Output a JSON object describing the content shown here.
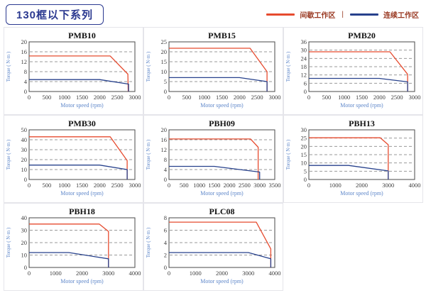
{
  "header": {
    "series_title": "130框以下系列",
    "legend": {
      "intermittent_label": "间歇工作区",
      "separator": "|",
      "continuous_label": "连续工作区"
    }
  },
  "colors": {
    "intermittent": "#e64b2f",
    "continuous": "#27418c",
    "grid": "#9a9a9a",
    "plot_border": "#4a4a4a",
    "tick": "#3c3c3c",
    "axis_label": "#5c85c9",
    "legend_text": "#9a3a23",
    "accent": "#2b3990",
    "cell_border": "#e5e5ea"
  },
  "chart_data": [
    {
      "type": "line",
      "title": "PMB10",
      "xlabel": "Motor speed (rpm)",
      "ylabel": "Torque ( N·m )",
      "xlim": [
        0,
        3000
      ],
      "ylim": [
        0,
        20
      ],
      "xticks": [
        0,
        500,
        1000,
        1500,
        2000,
        2500,
        3000
      ],
      "yticks": [
        0,
        4,
        8,
        12,
        16,
        20
      ],
      "series": [
        {
          "name": "间歇工作区",
          "role": "intermittent",
          "points": [
            [
              0,
              14.3
            ],
            [
              2300,
              14.3
            ],
            [
              2800,
              7
            ],
            [
              2810,
              0
            ]
          ]
        },
        {
          "name": "连续工作区",
          "role": "continuous",
          "points": [
            [
              0,
              4.8
            ],
            [
              2000,
              4.8
            ],
            [
              2820,
              3
            ],
            [
              2820,
              0
            ]
          ]
        }
      ]
    },
    {
      "type": "line",
      "title": "PMB15",
      "xlabel": "Motor speed (rpm)",
      "ylabel": "Torque ( N·m )",
      "xlim": [
        0,
        3000
      ],
      "ylim": [
        0,
        25
      ],
      "xticks": [
        0,
        500,
        1000,
        1500,
        2000,
        2500,
        3000
      ],
      "yticks": [
        0,
        5,
        10,
        15,
        20,
        25
      ],
      "series": [
        {
          "name": "间歇工作区",
          "role": "intermittent",
          "points": [
            [
              0,
              21.8
            ],
            [
              2300,
              21.8
            ],
            [
              2780,
              10
            ],
            [
              2780,
              0
            ]
          ]
        },
        {
          "name": "连续工作区",
          "role": "continuous",
          "points": [
            [
              0,
              7
            ],
            [
              2000,
              7
            ],
            [
              2780,
              5
            ],
            [
              2780,
              0
            ]
          ]
        }
      ]
    },
    {
      "type": "line",
      "title": "PMB20",
      "xlabel": "Motor speed (rpm)",
      "ylabel": "Torque ( N·m )",
      "xlim": [
        0,
        3000
      ],
      "ylim": [
        0,
        36
      ],
      "xticks": [
        0,
        500,
        1000,
        1500,
        2000,
        2500,
        3000
      ],
      "yticks": [
        0,
        6,
        12,
        18,
        24,
        30,
        36
      ],
      "series": [
        {
          "name": "间歇工作区",
          "role": "intermittent",
          "points": [
            [
              0,
              28.8
            ],
            [
              2300,
              28.8
            ],
            [
              2800,
              12.5
            ],
            [
              2800,
              0
            ]
          ]
        },
        {
          "name": "连续工作区",
          "role": "continuous",
          "points": [
            [
              0,
              9.5
            ],
            [
              2000,
              9.5
            ],
            [
              2800,
              7
            ],
            [
              2800,
              0
            ]
          ]
        }
      ]
    },
    {
      "type": "line",
      "title": "PMB30",
      "xlabel": "Motor speed (rpm)",
      "ylabel": "Torque ( N·m )",
      "xlim": [
        0,
        3000
      ],
      "ylim": [
        0,
        50
      ],
      "xticks": [
        0,
        500,
        1000,
        1500,
        2000,
        2500,
        3000
      ],
      "yticks": [
        0,
        10,
        20,
        30,
        40,
        50
      ],
      "series": [
        {
          "name": "间歇工作区",
          "role": "intermittent",
          "points": [
            [
              0,
              43
            ],
            [
              2300,
              43
            ],
            [
              2780,
              19
            ],
            [
              2780,
              0
            ]
          ]
        },
        {
          "name": "连续工作区",
          "role": "continuous",
          "points": [
            [
              0,
              14.5
            ],
            [
              2000,
              14.5
            ],
            [
              2780,
              10
            ],
            [
              2780,
              0
            ]
          ]
        }
      ]
    },
    {
      "type": "line",
      "title": "PBH09",
      "xlabel": "Motor speed (rpm)",
      "ylabel": "Torque ( N·m )",
      "xlim": [
        0,
        3500
      ],
      "ylim": [
        0,
        20
      ],
      "xticks": [
        0,
        500,
        1000,
        1500,
        2000,
        2500,
        3000,
        3500
      ],
      "yticks": [
        0,
        4,
        8,
        12,
        16,
        20
      ],
      "series": [
        {
          "name": "间歇工作区",
          "role": "intermittent",
          "points": [
            [
              0,
              16.3
            ],
            [
              2700,
              16.3
            ],
            [
              2950,
              13
            ],
            [
              2950,
              0
            ]
          ]
        },
        {
          "name": "连续工作区",
          "role": "continuous",
          "points": [
            [
              0,
              5.3
            ],
            [
              1500,
              5.3
            ],
            [
              3000,
              3
            ],
            [
              3000,
              0
            ]
          ]
        }
      ]
    },
    {
      "type": "line",
      "title": "PBH13",
      "xlabel": "Motor speed (rpm)",
      "ylabel": "Torque ( N·m )",
      "xlim": [
        0,
        4000
      ],
      "ylim": [
        0,
        30
      ],
      "xticks": [
        0,
        1000,
        2000,
        3000,
        4000
      ],
      "yticks": [
        0,
        5,
        10,
        15,
        20,
        25,
        30
      ],
      "series": [
        {
          "name": "间歇工作区",
          "role": "intermittent",
          "points": [
            [
              0,
              25.2
            ],
            [
              2700,
              25.2
            ],
            [
              3000,
              21
            ],
            [
              3000,
              0
            ]
          ]
        },
        {
          "name": "连续工作区",
          "role": "continuous",
          "points": [
            [
              0,
              8.5
            ],
            [
              1500,
              8.5
            ],
            [
              3000,
              5.2
            ],
            [
              3000,
              0
            ]
          ]
        }
      ]
    },
    {
      "type": "line",
      "title": "PBH18",
      "xlabel": "Motor speed (rpm)",
      "ylabel": "Torque ( N·m )",
      "xlim": [
        0,
        4000
      ],
      "ylim": [
        0,
        40
      ],
      "xticks": [
        0,
        1000,
        2000,
        3000,
        4000
      ],
      "yticks": [
        0,
        10,
        20,
        30,
        40
      ],
      "series": [
        {
          "name": "间歇工作区",
          "role": "intermittent",
          "points": [
            [
              0,
              35
            ],
            [
              2650,
              35
            ],
            [
              3000,
              29
            ],
            [
              3000,
              0
            ]
          ]
        },
        {
          "name": "连续工作区",
          "role": "continuous",
          "points": [
            [
              0,
              12
            ],
            [
              1500,
              12
            ],
            [
              3000,
              7
            ],
            [
              3000,
              0
            ]
          ]
        }
      ]
    },
    {
      "type": "line",
      "title": "PLC08",
      "xlabel": "Motor speed (rpm)",
      "ylabel": "Torque ( N·m )",
      "xlim": [
        0,
        4000
      ],
      "ylim": [
        0,
        8
      ],
      "xticks": [
        0,
        1000,
        2000,
        3000,
        4000
      ],
      "yticks": [
        0,
        2,
        4,
        6,
        8
      ],
      "series": [
        {
          "name": "间歇工作区",
          "role": "intermittent",
          "points": [
            [
              0,
              7.3
            ],
            [
              3300,
              7.3
            ],
            [
              3850,
              3
            ],
            [
              3850,
              0
            ]
          ]
        },
        {
          "name": "连续工作区",
          "role": "continuous",
          "points": [
            [
              0,
              2.4
            ],
            [
              3000,
              2.4
            ],
            [
              3850,
              1.4
            ],
            [
              3850,
              0
            ]
          ]
        }
      ]
    }
  ]
}
